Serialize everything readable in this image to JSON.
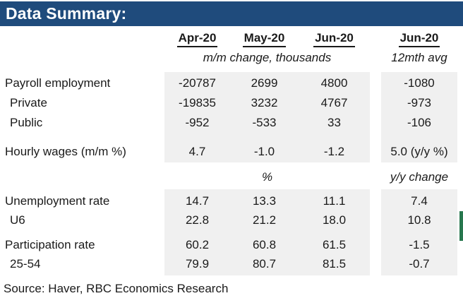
{
  "title": "Data Summary:",
  "colors": {
    "header_bar": "#1f4b7c",
    "header_text": "#ffffff",
    "band_gray": "#f0f0f0",
    "body_text": "#1a1a1a",
    "green_strip": "#27774e"
  },
  "table": {
    "columns": [
      "Apr-20",
      "May-20",
      "Jun-20",
      "Jun-20"
    ],
    "unit_row1": {
      "left": "m/m change, thousands",
      "right": "12mth avg"
    },
    "unit_row2": {
      "left": "%",
      "right": "y/y change"
    },
    "rows": [
      {
        "label": "Payroll employment",
        "values": [
          "-20787",
          "2699",
          "4800",
          "-1080"
        ]
      },
      {
        "label": "Private",
        "values": [
          "-19835",
          "3232",
          "4767",
          "-973"
        ]
      },
      {
        "label": "Public",
        "values": [
          "-952",
          "-533",
          "33",
          "-106"
        ]
      },
      {
        "label": "Hourly wages (m/m %)",
        "values": [
          "4.7",
          "-1.0",
          "-1.2",
          "5.0 (y/y %)"
        ]
      },
      {
        "label": "Unemployment rate",
        "values": [
          "14.7",
          "13.3",
          "11.1",
          "7.4"
        ]
      },
      {
        "label": "U6",
        "values": [
          "22.8",
          "21.2",
          "18.0",
          "10.8"
        ]
      },
      {
        "label": "Participation rate",
        "values": [
          "60.2",
          "60.8",
          "61.5",
          "-1.5"
        ]
      },
      {
        "label": "25-54",
        "values": [
          "79.9",
          "80.7",
          "81.5",
          "-0.7"
        ]
      }
    ],
    "source": "Source:  Haver, RBC Economics Research"
  },
  "chart_data": {
    "type": "table",
    "title": "Data Summary:",
    "columns": [
      "Apr-20",
      "May-20",
      "Jun-20",
      "Jun-20 12mth avg"
    ],
    "units": [
      "m/m change, thousands (Apr/May/Jun)",
      "% for rates",
      "y/y change for last column"
    ],
    "rows": [
      [
        "Payroll employment",
        -20787,
        2699,
        4800,
        -1080
      ],
      [
        "Private",
        -19835,
        3232,
        4767,
        -973
      ],
      [
        "Public",
        -952,
        -533,
        33,
        -106
      ],
      [
        "Hourly wages (m/m %)",
        4.7,
        -1.0,
        -1.2,
        "5.0 (y/y %)"
      ],
      [
        "Unemployment rate",
        14.7,
        13.3,
        11.1,
        7.4
      ],
      [
        "U6",
        22.8,
        21.2,
        18.0,
        10.8
      ],
      [
        "Participation rate",
        60.2,
        60.8,
        61.5,
        -1.5
      ],
      [
        "25-54",
        79.9,
        80.7,
        81.5,
        -0.7
      ]
    ],
    "source": "Source:  Haver, RBC Economics Research"
  }
}
